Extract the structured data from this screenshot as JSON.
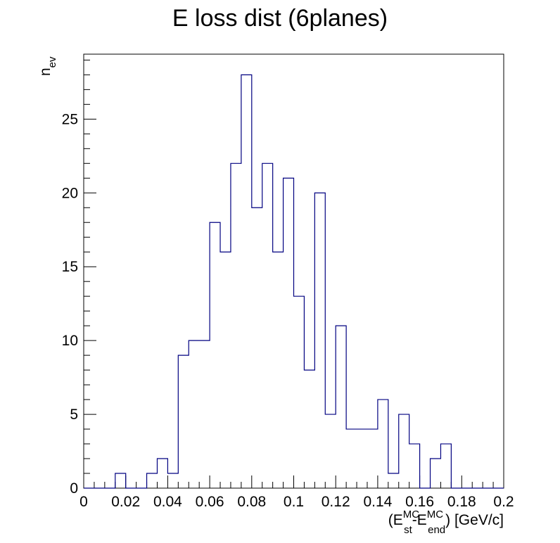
{
  "chart_data": {
    "type": "bar",
    "title": "E loss dist (6planes)",
    "xlabel": {
      "open": "(E",
      "sup1": "MC",
      "sub1": "st",
      "mid": "-E",
      "sup2": "MC",
      "sub2": "end",
      "close": ") [GeV/c]"
    },
    "ylabel": {
      "base": "n",
      "sub": "ev"
    },
    "xlim": [
      0,
      0.2
    ],
    "ylim": [
      0,
      29.4
    ],
    "bin_width": 0.005,
    "x_ticks": [
      "0",
      "0.02",
      "0.04",
      "0.06",
      "0.08",
      "0.1",
      "0.12",
      "0.14",
      "0.16",
      "0.18",
      "0.2"
    ],
    "y_ticks": [
      "0",
      "5",
      "10",
      "15",
      "20",
      "25"
    ],
    "values": [
      0,
      0,
      0,
      1,
      0,
      0,
      1,
      2,
      1,
      9,
      10,
      10,
      18,
      16,
      22,
      28,
      19,
      22,
      16,
      21,
      13,
      8,
      20,
      5,
      11,
      4,
      4,
      4,
      6,
      1,
      5,
      3,
      0,
      2,
      3,
      0,
      0,
      0,
      0,
      0
    ],
    "line_color": "#000080",
    "grid": false
  }
}
